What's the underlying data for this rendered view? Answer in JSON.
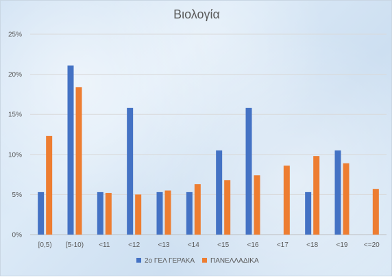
{
  "chart_data": {
    "type": "bar",
    "title": "Βιολογία",
    "xlabel": "",
    "ylabel": "",
    "categories": [
      "[0,5)",
      "[5-10)",
      "<11",
      "<12",
      "<13",
      "<14",
      "<15",
      "<16",
      "<17",
      "<18",
      "<19",
      "<=20"
    ],
    "ylim": [
      0,
      25
    ],
    "yticks": [
      "0%",
      "5%",
      "10%",
      "15%",
      "20%",
      "25%"
    ],
    "ytick_values": [
      0,
      5,
      10,
      15,
      20,
      25
    ],
    "grid": true,
    "legend_position": "bottom",
    "series": [
      {
        "name": "2ο ΓΕΛ ΓΕΡΑΚΑ",
        "color": "#4472c4",
        "values": [
          5.3,
          21.1,
          5.3,
          15.8,
          5.3,
          5.3,
          10.5,
          15.8,
          0,
          5.3,
          10.5,
          0
        ]
      },
      {
        "name": "ΠΑΝΕΛΛΑΔΙΚΑ",
        "color": "#ed7d31",
        "values": [
          12.3,
          18.4,
          5.2,
          5.0,
          5.5,
          6.3,
          6.8,
          7.4,
          8.6,
          9.8,
          8.9,
          5.7
        ]
      }
    ]
  }
}
